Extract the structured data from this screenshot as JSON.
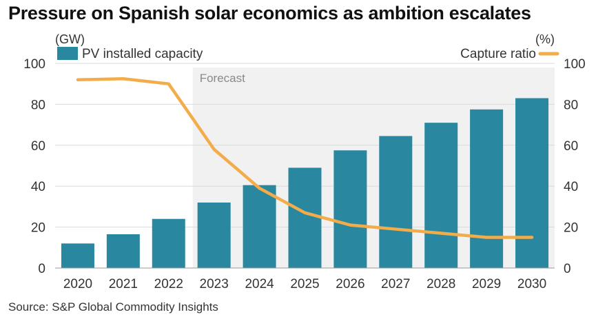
{
  "title": "Pressure on Spanish solar economics as ambition escalates",
  "source": "Source: S&P Global Commodity Insights",
  "colors": {
    "bar": "#2a87a0",
    "line": "#f2ad4a",
    "forecast_bg": "#f1f1f1",
    "grid": "#dadada"
  },
  "chart_data": {
    "type": "bar+line",
    "categories": [
      "2020",
      "2021",
      "2022",
      "2023",
      "2024",
      "2025",
      "2026",
      "2027",
      "2028",
      "2029",
      "2030"
    ],
    "series": [
      {
        "name": "PV installed capacity",
        "type": "bar",
        "axis": "left",
        "values": [
          12,
          16.5,
          24,
          32,
          40.5,
          49,
          57.5,
          64.5,
          71,
          77.5,
          83
        ]
      },
      {
        "name": "Capture ratio",
        "type": "line",
        "axis": "right",
        "values": [
          92,
          92.5,
          90,
          58,
          39,
          27,
          21,
          19,
          17,
          15,
          15
        ]
      }
    ],
    "left_axis": {
      "unit": "(GW)",
      "ylim": [
        0,
        100
      ],
      "ticks": [
        0,
        20,
        40,
        60,
        80,
        100
      ]
    },
    "right_axis": {
      "unit": "(%)",
      "ylim": [
        0,
        100
      ],
      "ticks": [
        0,
        20,
        40,
        60,
        80,
        100
      ]
    },
    "forecast": {
      "label": "Forecast",
      "start_category": "2023"
    },
    "legend": {
      "bar_label": "PV installed capacity",
      "line_label": "Capture ratio",
      "placement": "top"
    },
    "grid": true
  }
}
